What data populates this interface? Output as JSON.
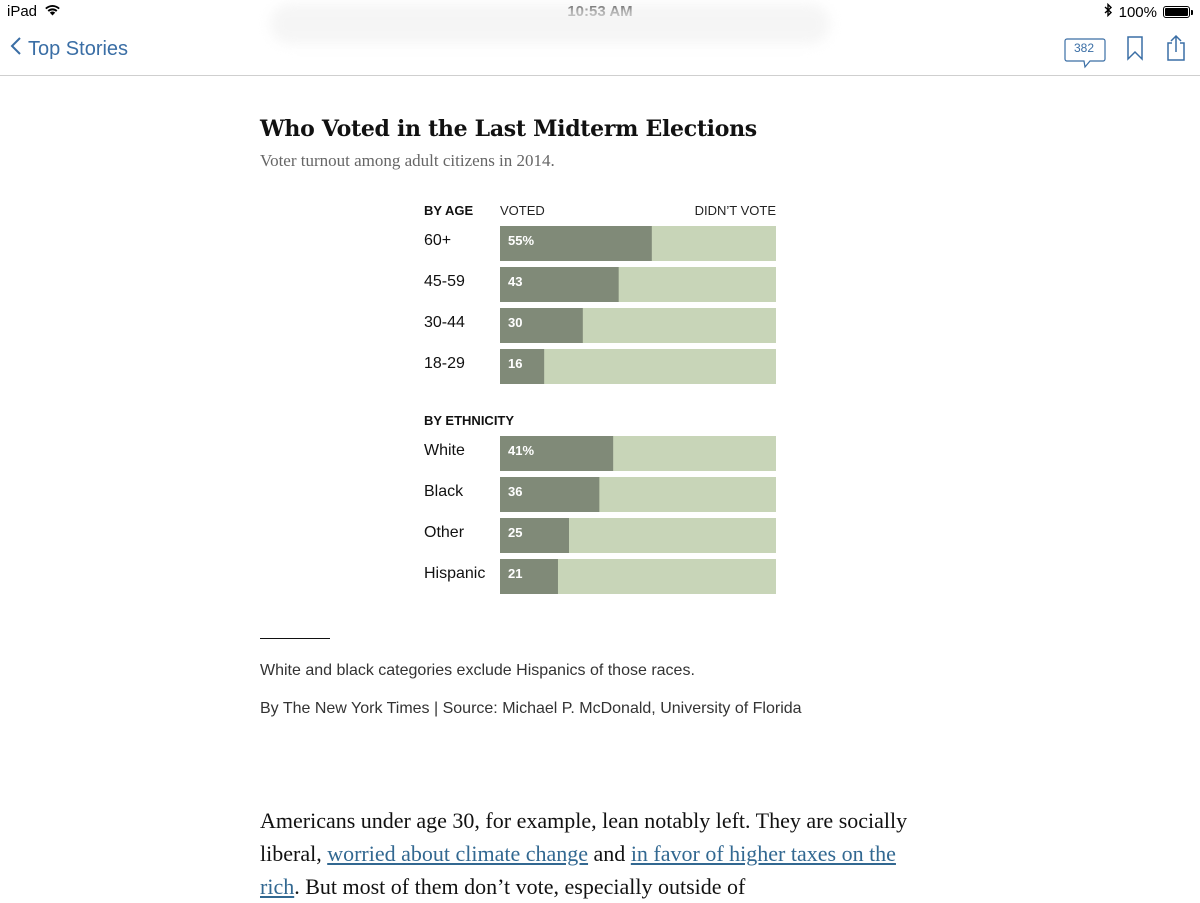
{
  "status_bar": {
    "device": "iPad",
    "time": "10:53 AM",
    "battery": "100%"
  },
  "nav": {
    "back_label": "Top Stories",
    "comment_count": "382"
  },
  "article": {
    "body_parts": [
      {
        "text": "Americans under age 30, for example, lean notably left. They are socially liberal, ",
        "link": false
      },
      {
        "text": "worried about climate change",
        "link": true
      },
      {
        "text": " and ",
        "link": false
      },
      {
        "text": "in favor of higher taxes on the rich",
        "link": true
      },
      {
        "text": ". But most of them don’t vote, especially outside of",
        "link": false
      }
    ]
  },
  "colors": {
    "voted": "#808a78",
    "didnt_vote": "#c8d5b8",
    "link": "#326891"
  },
  "chart_data": {
    "type": "bar",
    "orientation": "horizontal-stacked-100",
    "title": "Who Voted in the Last Midterm Elections",
    "subtitle": "Voter turnout among adult citizens in 2014.",
    "legend": {
      "voted": "VOTED",
      "didnt_vote": "DIDN’T VOTE"
    },
    "xlim": [
      0,
      100
    ],
    "groups": [
      {
        "name": "BY AGE",
        "categories": [
          "60+",
          "45-59",
          "30-44",
          "18-29"
        ],
        "values": [
          55,
          43,
          30,
          16
        ],
        "labels": [
          "55%",
          "43",
          "30",
          "16"
        ]
      },
      {
        "name": "BY ETHNICITY",
        "categories": [
          "White",
          "Black",
          "Other",
          "Hispanic"
        ],
        "values": [
          41,
          36,
          25,
          21
        ],
        "labels": [
          "41%",
          "36",
          "25",
          "21"
        ]
      }
    ],
    "note": "White and black categories exclude Hispanics of those races.",
    "credit": "By The New York Times | Source: Michael P. McDonald, University of Florida"
  }
}
